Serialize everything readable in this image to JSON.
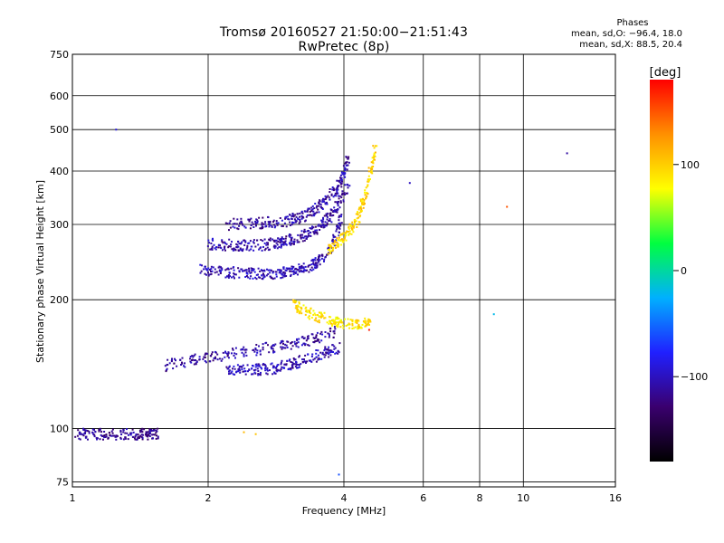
{
  "title": {
    "line1": "Tromsø 20160527 21:50:00−21:51:43",
    "line2": "RwPretec (8p)"
  },
  "phase_box": {
    "header": "Phases",
    "line_o": "mean, sd,O: −96.4, 18.0",
    "line_x": "mean, sd,X: 88.5, 20.4"
  },
  "colorbar": {
    "unit_label": "[deg]",
    "tick_labels": [
      "100",
      "0",
      "−100"
    ],
    "tick_values": [
      100,
      0,
      -100
    ],
    "range": [
      -180,
      180
    ],
    "colormap": [
      "#000000",
      "#3a006e",
      "#2020ff",
      "#00b0ff",
      "#00ff40",
      "#ffff00",
      "#ff9000",
      "#ff0000"
    ]
  },
  "chart_data": {
    "type": "scatter",
    "xlabel": "Frequency [MHz]",
    "ylabel": "Stationary phase Virtual Height [km]",
    "x_scale": "log",
    "y_scale": "log",
    "xlim": [
      1,
      16
    ],
    "ylim": [
      73,
      750
    ],
    "x_ticks": [
      1,
      2,
      4,
      6,
      8,
      10,
      16
    ],
    "x_tick_labels": [
      "1",
      "2",
      "4",
      "6",
      "8",
      "10",
      "16"
    ],
    "y_ticks": [
      75,
      100,
      200,
      300,
      400,
      500,
      600,
      750
    ],
    "y_tick_labels": [
      "75",
      "100",
      "200",
      "300",
      "400",
      "500",
      "600",
      "750"
    ],
    "grid": true,
    "traces": [
      {
        "kind": "O-mode F-layer low trace",
        "phase": -105,
        "f": [
          1.9,
          2.2,
          2.5,
          2.8,
          3.1,
          3.4,
          3.7,
          3.95
        ],
        "h": [
          235,
          232,
          230,
          230,
          233,
          240,
          258,
          310
        ]
      },
      {
        "kind": "O-mode F-layer mid trace",
        "phase": -110,
        "f": [
          2.0,
          2.3,
          2.6,
          2.9,
          3.2,
          3.5,
          3.8,
          4.1
        ],
        "h": [
          270,
          268,
          268,
          272,
          280,
          292,
          320,
          370
        ]
      },
      {
        "kind": "O-mode F-layer upper trace",
        "phase": -110,
        "f": [
          2.2,
          2.6,
          3.0,
          3.3,
          3.6,
          3.9,
          4.1
        ],
        "h": [
          300,
          302,
          306,
          315,
          335,
          370,
          430
        ]
      },
      {
        "kind": "O-mode E-layer trace",
        "phase": -115,
        "f": [
          1.02,
          1.15,
          1.3,
          1.45,
          1.55
        ],
        "h": [
          97,
          97,
          97,
          97,
          97
        ]
      },
      {
        "kind": "O-mode Es/E-layer trace",
        "phase": -110,
        "f": [
          1.6,
          1.9,
          2.3,
          2.8,
          3.3,
          3.8
        ],
        "h": [
          140,
          145,
          150,
          155,
          160,
          168
        ]
      },
      {
        "kind": "O-mode low E trace",
        "phase": -105,
        "f": [
          2.2,
          2.5,
          2.8,
          3.1,
          3.5,
          3.9
        ],
        "h": [
          138,
          137,
          138,
          142,
          148,
          155
        ]
      },
      {
        "kind": "X-mode F-layer trace",
        "phase": 95,
        "f": [
          3.7,
          4.0,
          4.3,
          4.5,
          4.7
        ],
        "h": [
          260,
          280,
          310,
          360,
          450
        ]
      },
      {
        "kind": "X-mode E-layer trace",
        "phase": 90,
        "f": [
          3.1,
          3.4,
          3.8,
          4.2,
          4.6
        ],
        "h": [
          195,
          185,
          178,
          175,
          178
        ]
      }
    ],
    "isolated_points": [
      {
        "f": 1.25,
        "h": 500,
        "phase": -90
      },
      {
        "f": 3.9,
        "h": 78,
        "phase": -60
      },
      {
        "f": 2.4,
        "h": 98,
        "phase": 110
      },
      {
        "f": 2.55,
        "h": 97,
        "phase": 105
      },
      {
        "f": 8.6,
        "h": 185,
        "phase": -20
      },
      {
        "f": 9.2,
        "h": 330,
        "phase": 150
      },
      {
        "f": 12.5,
        "h": 440,
        "phase": -110
      },
      {
        "f": 4.55,
        "h": 170,
        "phase": 170
      },
      {
        "f": 5.6,
        "h": 375,
        "phase": -100
      }
    ]
  }
}
